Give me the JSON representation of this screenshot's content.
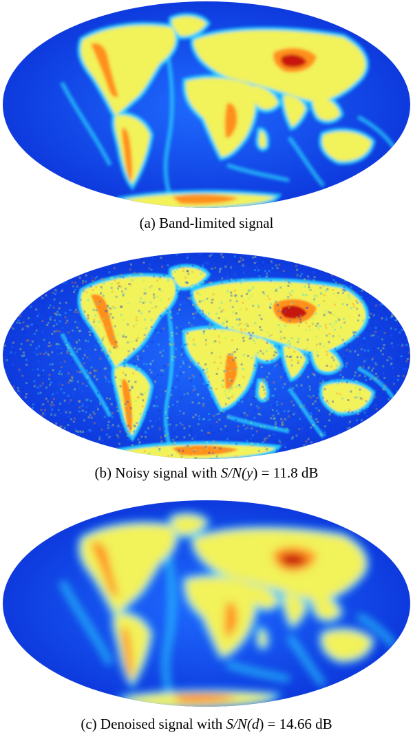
{
  "panels": [
    {
      "label": "(a)",
      "caption": "Band-limited signal",
      "snr_prefix": "",
      "snr_arg": "",
      "snr_value": "",
      "style": "smooth"
    },
    {
      "label": "(b)",
      "caption": "Noisy signal with",
      "snr_prefix": "S/N(",
      "snr_arg": "y",
      "snr_value": ") = 11.8 dB",
      "style": "noisy"
    },
    {
      "label": "(c)",
      "caption": "Denoised signal with",
      "snr_prefix": "S/N(",
      "snr_arg": "d",
      "snr_value": ") = 14.66 dB",
      "style": "blurred"
    }
  ],
  "colors": {
    "ocean_deep": "#0a2fd6",
    "ocean_mid": "#1f6bff",
    "ridge": "#29d8ff",
    "land_low": "#8ff07a",
    "land": "#f2f25a",
    "highland": "#ff8a1c",
    "peak": "#c40f0f"
  }
}
